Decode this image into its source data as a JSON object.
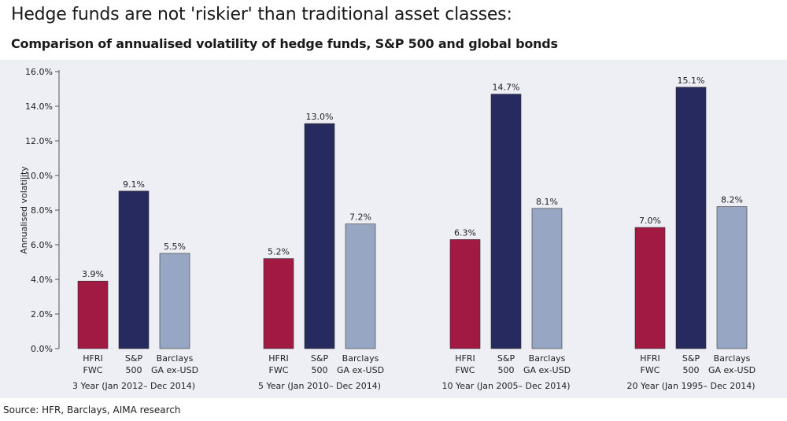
{
  "header": {
    "title": "Hedge funds are not 'riskier' than traditional asset classes:",
    "subtitle": "Comparison of annualised volatility of hedge funds, S&P 500 and global bonds"
  },
  "footer": {
    "source": "Source: HFR, Barclays, AIMA research"
  },
  "colors": {
    "hfri": "#a01a43",
    "sp500": "#262a5e",
    "barclays": "#97a7c3",
    "plot_background": "#eeeff5"
  },
  "chart_data": {
    "type": "bar",
    "title": "Hedge funds are not 'riskier' than traditional asset classes:",
    "subtitle": "Comparison of annualised volatility of hedge funds, S&P 500 and global bonds",
    "xlabel": "",
    "ylabel": "Annualised volatility",
    "ylim": [
      0,
      16
    ],
    "yticks": [
      "0.0%",
      "2.0%",
      "4.0%",
      "6.0%",
      "8.0%",
      "10.0%",
      "12.0%",
      "14.0%",
      "16.0%"
    ],
    "grid": false,
    "legend": "none",
    "categories": [
      "3 Year (Jan 2012– Dec 2014)",
      "5 Year (Jan 2010– Dec 2014)",
      "10 Year (Jan 2005– Dec 2014)",
      "20 Year (Jan 1995– Dec 2014)"
    ],
    "series": [
      {
        "key": "hfri",
        "label_lines": [
          "HFRI",
          "FWC"
        ],
        "values": [
          3.9,
          5.2,
          6.3,
          7.0
        ],
        "data_labels": [
          "3.9%",
          "5.2%",
          "6.3%",
          "7.0%"
        ]
      },
      {
        "key": "sp500",
        "label_lines": [
          "S&P",
          "500"
        ],
        "values": [
          9.1,
          13.0,
          14.7,
          15.1
        ],
        "data_labels": [
          "9.1%",
          "13.0%",
          "14.7%",
          "15.1%"
        ]
      },
      {
        "key": "barclays",
        "label_lines": [
          "Barclays",
          "GA ex-USD"
        ],
        "values": [
          5.5,
          7.2,
          8.1,
          8.2
        ],
        "data_labels": [
          "5.5%",
          "7.2%",
          "8.1%",
          "8.2%"
        ]
      }
    ]
  }
}
